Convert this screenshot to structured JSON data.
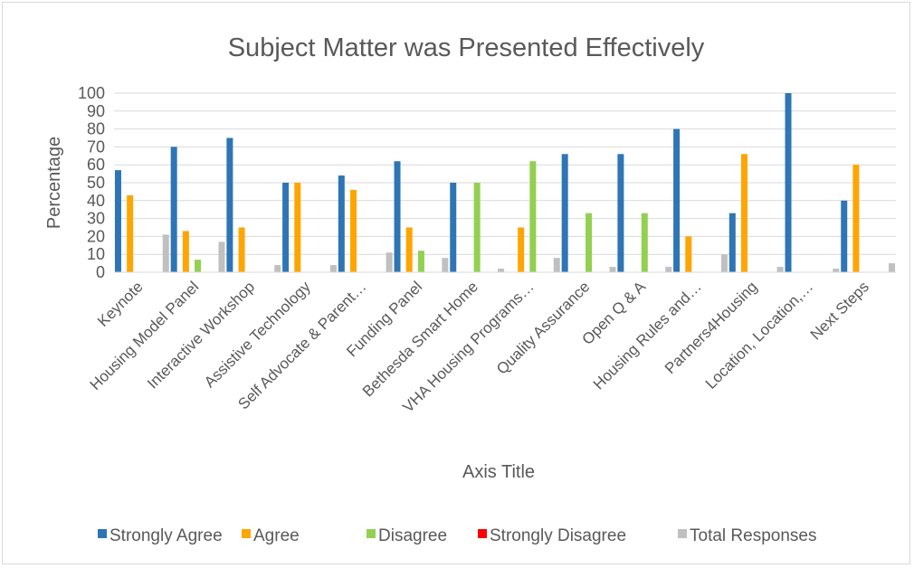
{
  "chart_data": {
    "type": "bar",
    "title": "Subject Matter was Presented Effectively",
    "xlabel": "Axis Title",
    "ylabel": "Percentage",
    "ylim": [
      0,
      100
    ],
    "yticks": [
      0,
      10,
      20,
      30,
      40,
      50,
      60,
      70,
      80,
      90,
      100
    ],
    "grid": true,
    "legend": "bottom",
    "categories": [
      "Keynote",
      "Housing Model Panel",
      "Interactive Workshop",
      "Assistive Technology",
      "Self Advocate & Parent…",
      "Funding Panel",
      "Bethesda Smart Home",
      "VHA Housing Programs…",
      "Quality Assurance",
      "Open Q & A",
      "Housing Rules and…",
      "Partners4Housing",
      "Location, Location,…",
      "Next Steps"
    ],
    "series": [
      {
        "name": "Strongly Agree",
        "color": "#2e75b6",
        "values": [
          57,
          70,
          75,
          50,
          54,
          62,
          50,
          0,
          66,
          66,
          80,
          33,
          100,
          40
        ]
      },
      {
        "name": "Agree",
        "color": "#ffa500",
        "values": [
          43,
          23,
          25,
          50,
          46,
          25,
          0,
          25,
          0,
          0,
          20,
          66,
          0,
          60
        ]
      },
      {
        "name": "Disagree",
        "color": "#92d050",
        "values": [
          0,
          7,
          0,
          0,
          0,
          12,
          50,
          62,
          33,
          33,
          0,
          0,
          0,
          0
        ]
      },
      {
        "name": "Strongly Disagree",
        "color": "#ff0000",
        "values": [
          0,
          0,
          0,
          0,
          0,
          0,
          0,
          0,
          0,
          0,
          0,
          0,
          0,
          0
        ]
      },
      {
        "name": "Total Responses",
        "color": "#c0c0c0",
        "values": [
          21,
          17,
          4,
          4,
          11,
          8,
          2,
          8,
          3,
          3,
          10,
          3,
          2,
          5
        ]
      }
    ]
  }
}
